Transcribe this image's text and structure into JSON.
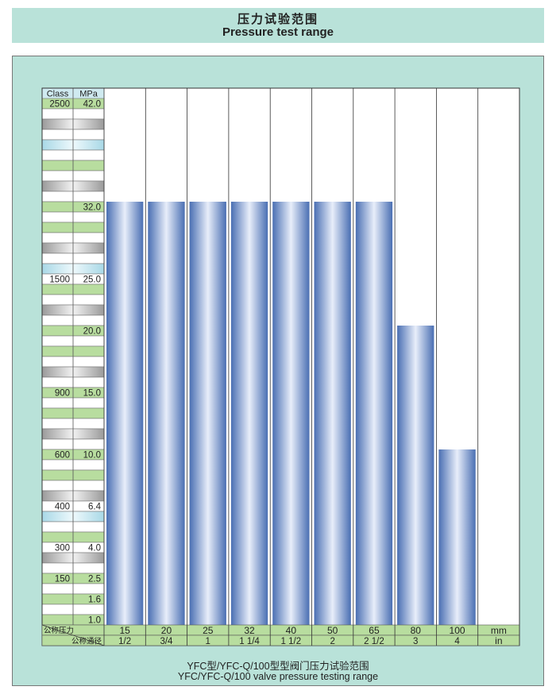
{
  "title_cn": "压力试验范围",
  "title_en": "Pressure test range",
  "caption_cn": "YFC型/YFC-Q/100型型阀门压力试验范围",
  "caption_en": "YFC/YFC-Q/100 valve pressure testing range",
  "colors": {
    "panel": "#b9e2d9",
    "bar_dark": "#4a6fb3",
    "bar_light": "#e8eefa",
    "green_row": "#b8dd9f",
    "cyan_row": "#cfeaf0",
    "grey_row": "#b7b7b7"
  },
  "chart_data": {
    "type": "bar",
    "header": {
      "class_label": "Class",
      "mpa_label": "MPa"
    },
    "y_scale_rows": [
      {
        "class": "2500",
        "mpa": "42.0"
      },
      {
        "class": "",
        "mpa": ""
      },
      {
        "class": "",
        "mpa": ""
      },
      {
        "class": "",
        "mpa": ""
      },
      {
        "class": "",
        "mpa": ""
      },
      {
        "class": "",
        "mpa": ""
      },
      {
        "class": "",
        "mpa": ""
      },
      {
        "class": "",
        "mpa": ""
      },
      {
        "class": "",
        "mpa": ""
      },
      {
        "class": "",
        "mpa": ""
      },
      {
        "class": "",
        "mpa": "32.0"
      },
      {
        "class": "",
        "mpa": ""
      },
      {
        "class": "",
        "mpa": ""
      },
      {
        "class": "",
        "mpa": ""
      },
      {
        "class": "",
        "mpa": ""
      },
      {
        "class": "",
        "mpa": ""
      },
      {
        "class": "",
        "mpa": ""
      },
      {
        "class": "1500",
        "mpa": "25.0"
      },
      {
        "class": "",
        "mpa": ""
      },
      {
        "class": "",
        "mpa": ""
      },
      {
        "class": "",
        "mpa": ""
      },
      {
        "class": "",
        "mpa": ""
      },
      {
        "class": "",
        "mpa": "20.0"
      },
      {
        "class": "",
        "mpa": ""
      },
      {
        "class": "",
        "mpa": ""
      },
      {
        "class": "",
        "mpa": ""
      },
      {
        "class": "",
        "mpa": ""
      },
      {
        "class": "",
        "mpa": ""
      },
      {
        "class": "900",
        "mpa": "15.0"
      },
      {
        "class": "",
        "mpa": ""
      },
      {
        "class": "",
        "mpa": ""
      },
      {
        "class": "",
        "mpa": ""
      },
      {
        "class": "",
        "mpa": ""
      },
      {
        "class": "",
        "mpa": ""
      },
      {
        "class": "600",
        "mpa": "10.0"
      },
      {
        "class": "",
        "mpa": ""
      },
      {
        "class": "",
        "mpa": ""
      },
      {
        "class": "",
        "mpa": ""
      },
      {
        "class": "",
        "mpa": ""
      },
      {
        "class": "400",
        "mpa": "6.4"
      },
      {
        "class": "",
        "mpa": ""
      },
      {
        "class": "",
        "mpa": ""
      },
      {
        "class": "",
        "mpa": ""
      },
      {
        "class": "300",
        "mpa": "4.0"
      },
      {
        "class": "",
        "mpa": ""
      },
      {
        "class": "",
        "mpa": ""
      },
      {
        "class": "150",
        "mpa": "2.5"
      },
      {
        "class": "",
        "mpa": ""
      },
      {
        "class": "",
        "mpa": "1.6"
      },
      {
        "class": "",
        "mpa": ""
      },
      {
        "class": "",
        "mpa": "1.0"
      }
    ],
    "row_label_nominal_pressure": "公称压力",
    "row_label_nominal_diameter": "公称通径",
    "categories_mm": [
      "15",
      "20",
      "25",
      "32",
      "40",
      "50",
      "65",
      "80",
      "100"
    ],
    "categories_in": [
      "1/2",
      "3/4",
      "1",
      "1 1/4",
      "1 1/2",
      "2",
      "2 1/2",
      "3",
      "4"
    ],
    "unit_mm": "mm",
    "unit_in": "in",
    "values": [
      32.0,
      32.0,
      32.0,
      32.0,
      32.0,
      32.0,
      32.0,
      20.0,
      10.0
    ],
    "ylim": [
      1.0,
      42.0
    ]
  }
}
